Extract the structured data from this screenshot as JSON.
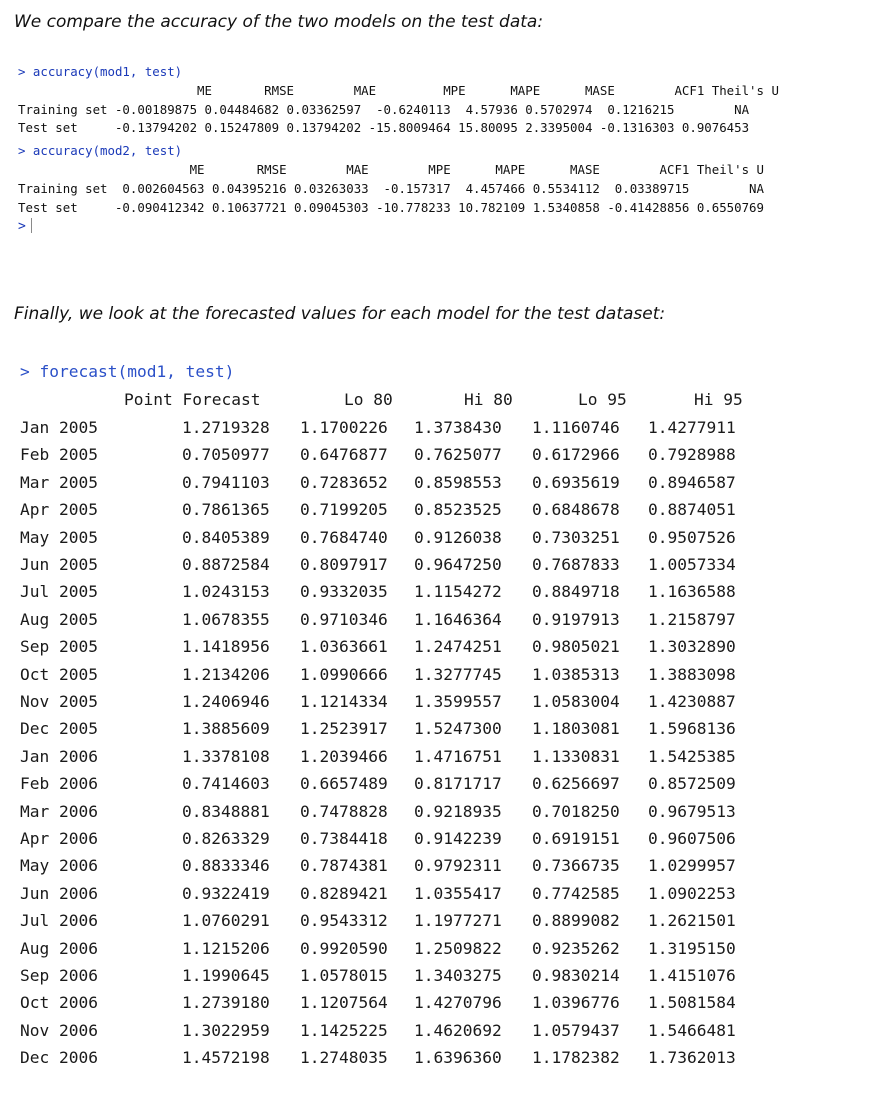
{
  "intro_text": "We compare the accuracy of the two models on the test data:",
  "outro_text": "Finally, we look at the forecasted values for each model for the test dataset:",
  "console1": {
    "prompt": ">",
    "lines": [
      {
        "type": "cmd",
        "text": "> accuracy(mod1, test)"
      },
      {
        "type": "out",
        "text": "                        ME       RMSE        MAE         MPE      MAPE      MASE        ACF1 Theil's U"
      },
      {
        "type": "out",
        "text": "Training set -0.00189875 0.04484682 0.03362597  -0.6240113  4.57936 0.5702974  0.1216215        NA"
      },
      {
        "type": "out",
        "text": "Test set     -0.13794202 0.15247809 0.13794202 -15.8009464 15.80095 2.3395004 -0.1316303 0.9076453"
      },
      {
        "type": "cmd",
        "text": "> accuracy(mod2, test)"
      },
      {
        "type": "out",
        "text": "                       ME       RMSE        MAE        MPE      MAPE      MASE        ACF1 Theil's U"
      },
      {
        "type": "out",
        "text": "Training set  0.002604563 0.04395216 0.03263033  -0.157317  4.457466 0.5534112  0.03389715        NA"
      },
      {
        "type": "out",
        "text": "Test set     -0.090412342 0.10637721 0.09045303 -10.778233 10.782109 1.5340858 -0.41428856 0.6550769"
      }
    ]
  },
  "console2": {
    "command": "> forecast(mod1, test)",
    "headers": [
      "Point Forecast",
      "Lo 80",
      "Hi 80",
      "Lo 95",
      "Hi 95"
    ],
    "rows": [
      [
        "Jan 2005",
        "1.2719328",
        "1.1700226",
        "1.3738430",
        "1.1160746",
        "1.4277911"
      ],
      [
        "Feb 2005",
        "0.7050977",
        "0.6476877",
        "0.7625077",
        "0.6172966",
        "0.7928988"
      ],
      [
        "Mar 2005",
        "0.7941103",
        "0.7283652",
        "0.8598553",
        "0.6935619",
        "0.8946587"
      ],
      [
        "Apr 2005",
        "0.7861365",
        "0.7199205",
        "0.8523525",
        "0.6848678",
        "0.8874051"
      ],
      [
        "May 2005",
        "0.8405389",
        "0.7684740",
        "0.9126038",
        "0.7303251",
        "0.9507526"
      ],
      [
        "Jun 2005",
        "0.8872584",
        "0.8097917",
        "0.9647250",
        "0.7687833",
        "1.0057334"
      ],
      [
        "Jul 2005",
        "1.0243153",
        "0.9332035",
        "1.1154272",
        "0.8849718",
        "1.1636588"
      ],
      [
        "Aug 2005",
        "1.0678355",
        "0.9710346",
        "1.1646364",
        "0.9197913",
        "1.2158797"
      ],
      [
        "Sep 2005",
        "1.1418956",
        "1.0363661",
        "1.2474251",
        "0.9805021",
        "1.3032890"
      ],
      [
        "Oct 2005",
        "1.2134206",
        "1.0990666",
        "1.3277745",
        "1.0385313",
        "1.3883098"
      ],
      [
        "Nov 2005",
        "1.2406946",
        "1.1214334",
        "1.3599557",
        "1.0583004",
        "1.4230887"
      ],
      [
        "Dec 2005",
        "1.3885609",
        "1.2523917",
        "1.5247300",
        "1.1803081",
        "1.5968136"
      ],
      [
        "Jan 2006",
        "1.3378108",
        "1.2039466",
        "1.4716751",
        "1.1330831",
        "1.5425385"
      ],
      [
        "Feb 2006",
        "0.7414603",
        "0.6657489",
        "0.8171717",
        "0.6256697",
        "0.8572509"
      ],
      [
        "Mar 2006",
        "0.8348881",
        "0.7478828",
        "0.9218935",
        "0.7018250",
        "0.9679513"
      ],
      [
        "Apr 2006",
        "0.8263329",
        "0.7384418",
        "0.9142239",
        "0.6919151",
        "0.9607506"
      ],
      [
        "May 2006",
        "0.8833346",
        "0.7874381",
        "0.9792311",
        "0.7366735",
        "1.0299957"
      ],
      [
        "Jun 2006",
        "0.9322419",
        "0.8289421",
        "1.0355417",
        "0.7742585",
        "1.0902253"
      ],
      [
        "Jul 2006",
        "1.0760291",
        "0.9543312",
        "1.1977271",
        "0.8899082",
        "1.2621501"
      ],
      [
        "Aug 2006",
        "1.1215206",
        "0.9920590",
        "1.2509822",
        "0.9235262",
        "1.3195150"
      ],
      [
        "Sep 2006",
        "1.1990645",
        "1.0578015",
        "1.3403275",
        "0.9830214",
        "1.4151076"
      ],
      [
        "Oct 2006",
        "1.2739180",
        "1.1207564",
        "1.4270796",
        "1.0396776",
        "1.5081584"
      ],
      [
        "Nov 2006",
        "1.3022959",
        "1.1425225",
        "1.4620692",
        "1.0579437",
        "1.5466481"
      ],
      [
        "Dec 2006",
        "1.4572198",
        "1.2748035",
        "1.6396360",
        "1.1782382",
        "1.7362013"
      ]
    ]
  },
  "colors": {
    "command": "#1a39b8",
    "text": "#111111",
    "background": "#ffffff"
  }
}
